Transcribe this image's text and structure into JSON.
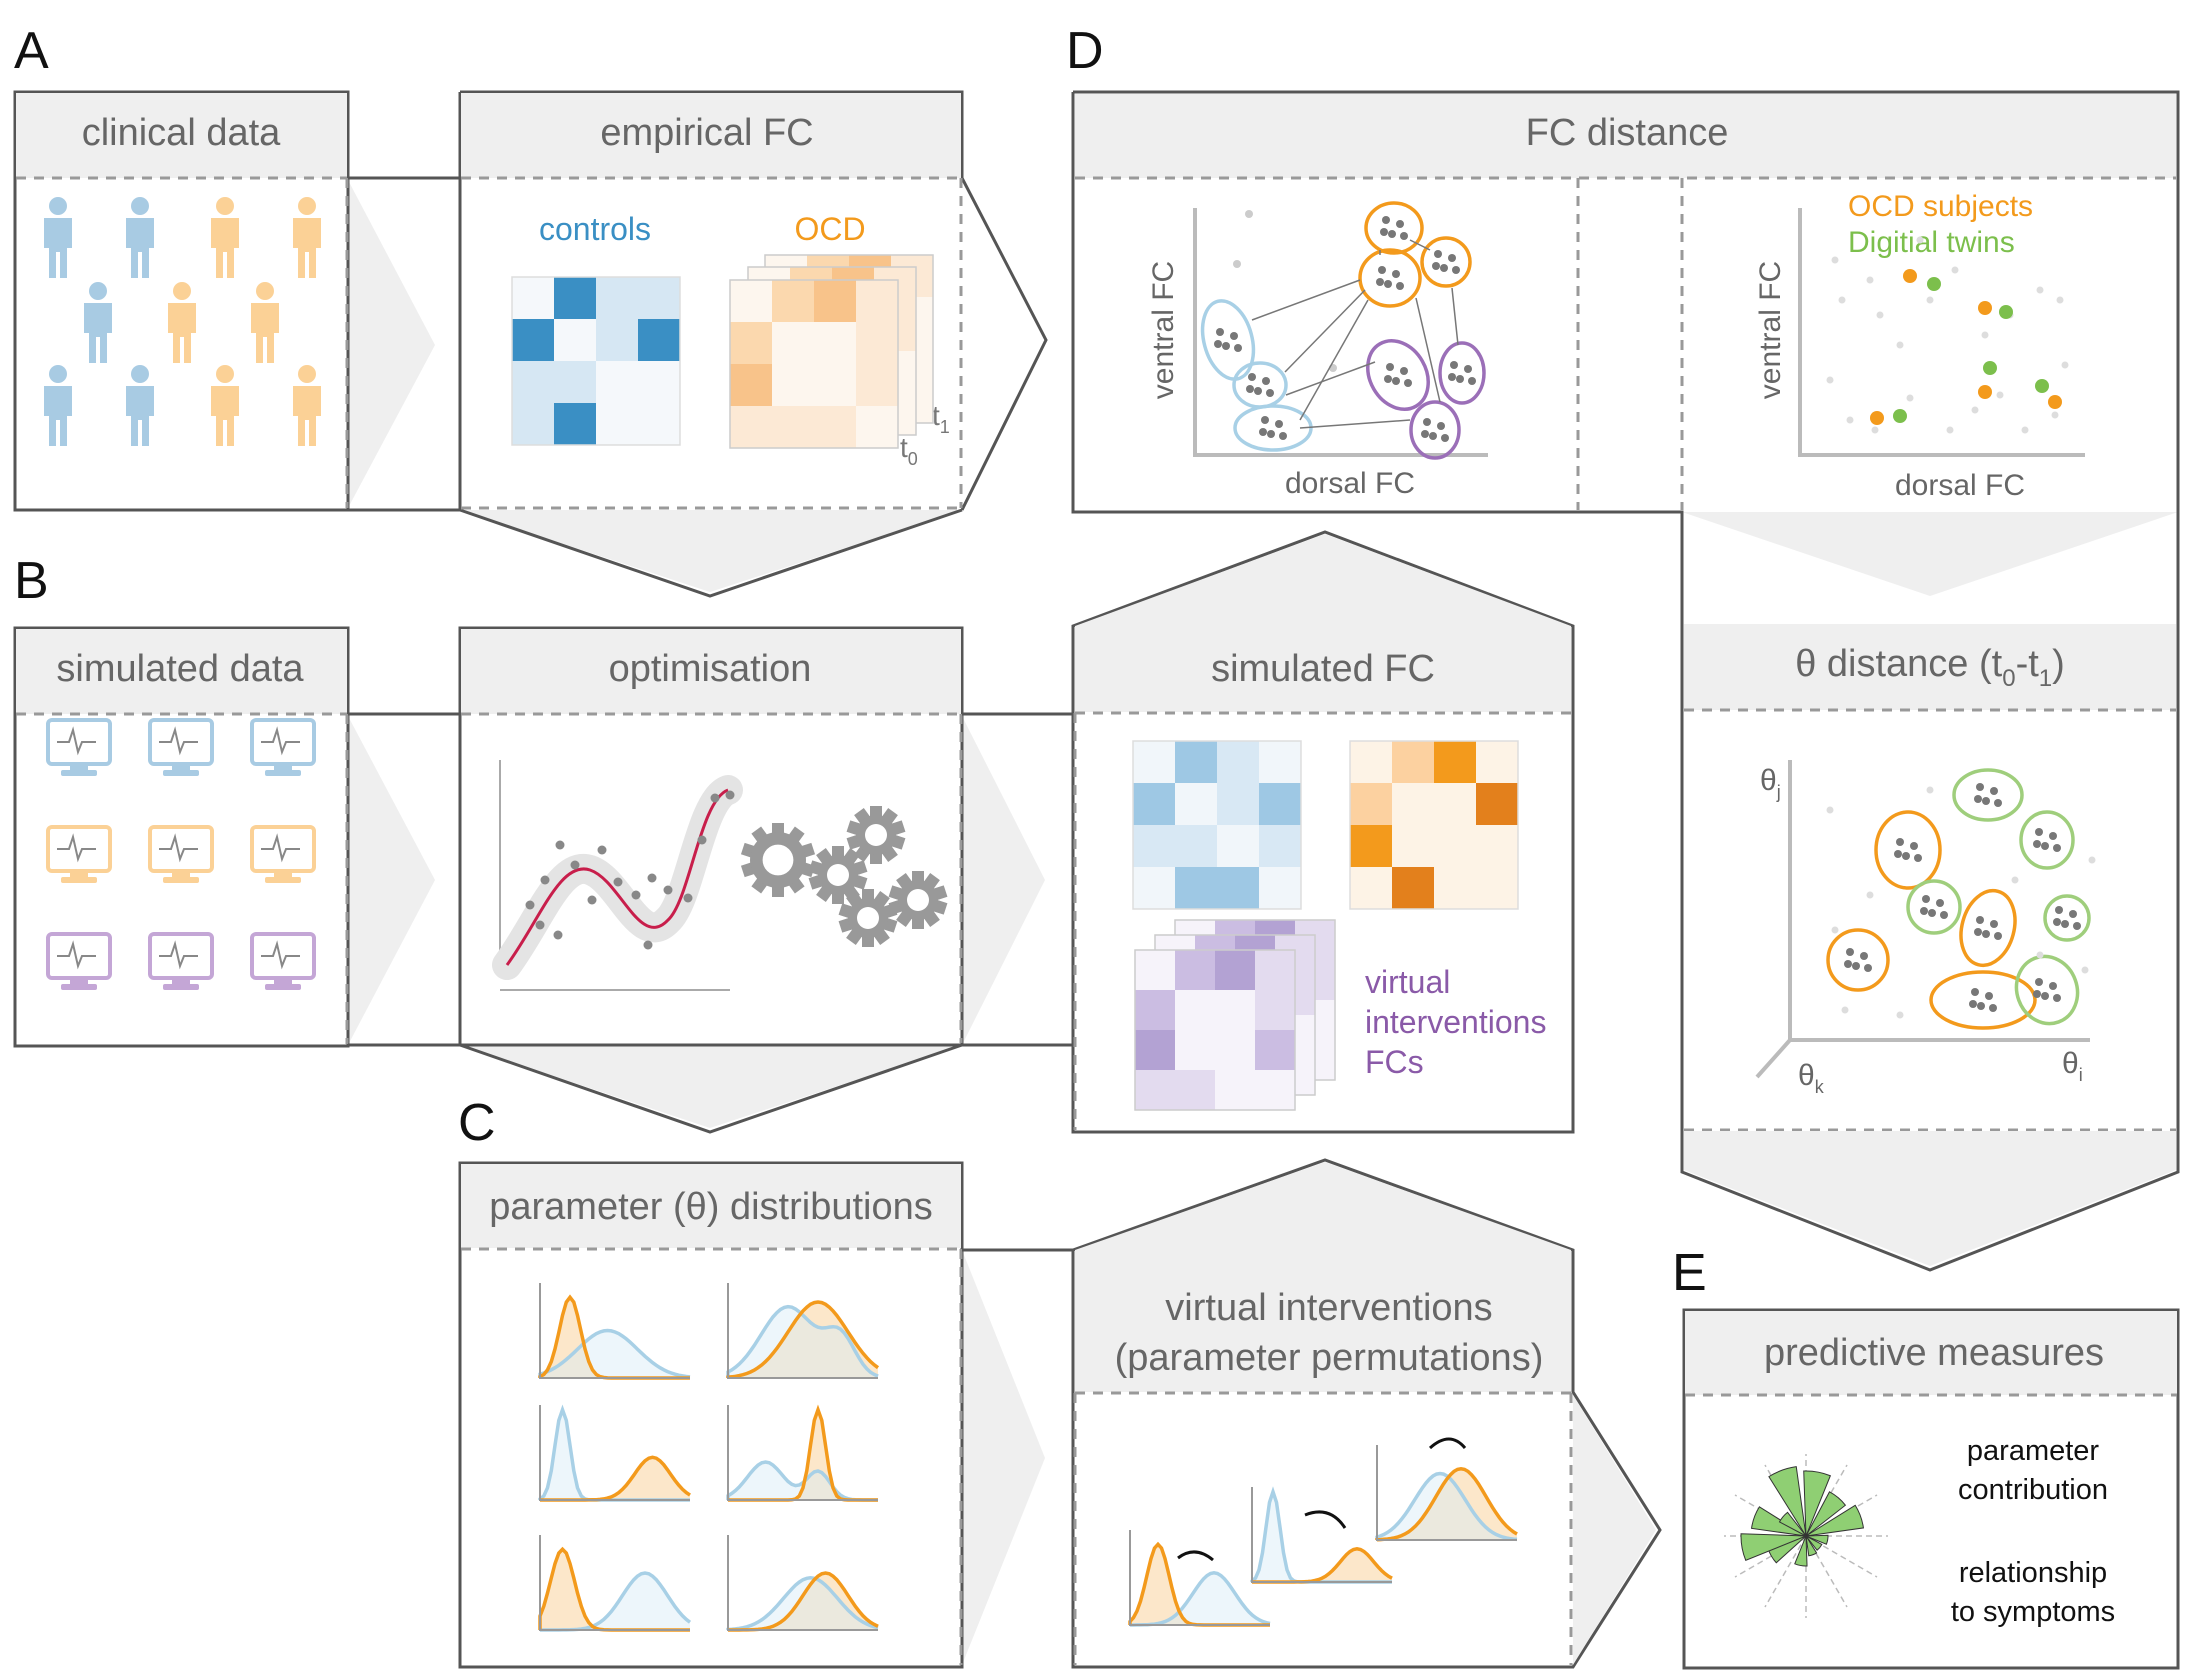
{
  "panel_labels": {
    "a": "A",
    "b": "B",
    "c": "C",
    "d": "D",
    "e": "E"
  },
  "panel_a": {
    "clinical_title": "clinical data",
    "empirical_title": "empirical FC",
    "controls_label": "controls",
    "ocd_label": "OCD",
    "time_t0": "t",
    "time_t0_sub": "0",
    "time_t1": "t",
    "time_t1_sub": "1"
  },
  "panel_b": {
    "simulated_title": "simulated data",
    "optimisation_title": "optimisation",
    "simfc_title": "simulated FC",
    "virtual_line1": "virtual",
    "virtual_line2": "interventions",
    "virtual_line3": "FCs"
  },
  "panel_c": {
    "param_title": "parameter (θ) distributions",
    "vi_title_line1": "virtual interventions",
    "vi_title_line2": "(parameter permutations)"
  },
  "panel_d": {
    "fc_distance_title": "FC distance",
    "ylabel_left": "ventral FC",
    "xlabel_left": "dorsal FC",
    "ylabel_right": "ventral FC",
    "xlabel_right": "dorsal FC",
    "legend_ocd": "OCD subjects",
    "legend_twins": "Digitial twins",
    "theta_title_main": "θ distance (t",
    "theta_title_sub0": "0",
    "theta_title_mid": "-t",
    "theta_title_sub1": "1",
    "theta_title_end": ")",
    "axis_theta_j": "θ",
    "axis_theta_j_sub": "j",
    "axis_theta_k": "θ",
    "axis_theta_k_sub": "k",
    "axis_theta_i": "θ",
    "axis_theta_i_sub": "i"
  },
  "panel_e": {
    "title": "predictive measures",
    "line1": "parameter",
    "line2": "contribution",
    "line3": "relationship",
    "line4": "to symptoms"
  },
  "colors": {
    "frame": "#555555",
    "header_fill": "#efefef",
    "text_gray": "#666666",
    "blue": "#3a8fc4",
    "light_blue": "#a8d0e6",
    "orange": "#f39a1c",
    "light_orange": "#f9c98a",
    "purple": "#8a5aa8",
    "light_purple": "#b9a6d4",
    "green": "#7cbf4c",
    "crimson": "#c81e4b"
  }
}
